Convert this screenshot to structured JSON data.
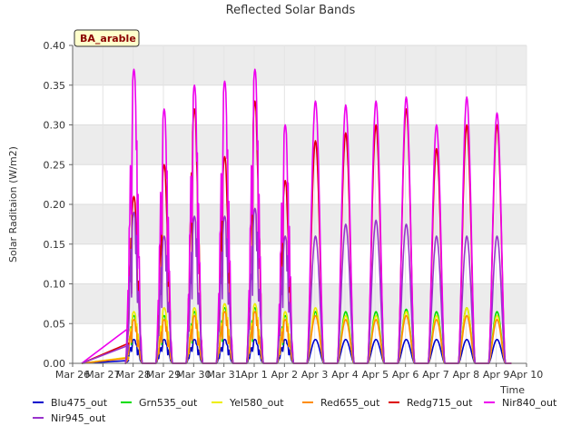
{
  "chart_data": {
    "type": "line",
    "title": "Reflected Solar Bands",
    "xlabel": "Time",
    "ylabel": "Solar Raditaion (W/m2)",
    "site_label": "BA_arable",
    "ylim": [
      0,
      0.4
    ],
    "yticks": [
      "0.00",
      "0.05",
      "0.10",
      "0.15",
      "0.20",
      "0.25",
      "0.30",
      "0.35",
      "0.40"
    ],
    "xlim": [
      0,
      15
    ],
    "xticks": [
      "Mar 26",
      "Mar 27",
      "Mar 28",
      "Mar 29",
      "Mar 30",
      "Mar 31",
      "Apr 1",
      "Apr 2",
      "Apr 3",
      "Apr 4",
      "Apr 5",
      "Apr 6",
      "Apr 7",
      "Apr 8",
      "Apr 9",
      "Apr 10"
    ],
    "days": [
      "Mar 28",
      "Mar 29",
      "Mar 30",
      "Mar 31",
      "Apr 1",
      "Apr 2",
      "Apr 3",
      "Apr 4",
      "Apr 5",
      "Apr 6",
      "Apr 7",
      "Apr 8",
      "Apr 9"
    ],
    "series": [
      {
        "name": "Blu475_out",
        "color": "#0000cc",
        "daily_peaks": [
          0.03,
          0.03,
          0.03,
          0.03,
          0.03,
          0.03,
          0.03,
          0.03,
          0.03,
          0.03,
          0.03,
          0.03,
          0.03
        ]
      },
      {
        "name": "Grn535_out",
        "color": "#00dd00",
        "daily_peaks": [
          0.06,
          0.06,
          0.065,
          0.07,
          0.07,
          0.06,
          0.065,
          0.065,
          0.065,
          0.068,
          0.065,
          0.07,
          0.065
        ]
      },
      {
        "name": "Yel580_out",
        "color": "#eeee00",
        "daily_peaks": [
          0.065,
          0.07,
          0.07,
          0.075,
          0.075,
          0.065,
          0.07,
          0.06,
          0.06,
          0.065,
          0.06,
          0.07,
          0.06
        ]
      },
      {
        "name": "Red655_out",
        "color": "#ff8c00",
        "daily_peaks": [
          0.055,
          0.055,
          0.06,
          0.065,
          0.065,
          0.055,
          0.06,
          0.055,
          0.055,
          0.06,
          0.055,
          0.06,
          0.055
        ]
      },
      {
        "name": "Redg715_out",
        "color": "#dd0000",
        "daily_peaks": [
          0.21,
          0.25,
          0.32,
          0.26,
          0.33,
          0.23,
          0.28,
          0.29,
          0.3,
          0.32,
          0.27,
          0.3,
          0.3
        ]
      },
      {
        "name": "Nir840_out",
        "color": "#ee00ee",
        "daily_peaks": [
          0.37,
          0.32,
          0.35,
          0.355,
          0.37,
          0.3,
          0.33,
          0.325,
          0.33,
          0.335,
          0.3,
          0.335,
          0.315
        ]
      },
      {
        "name": "Nir945_out",
        "color": "#9933cc",
        "daily_peaks": [
          0.19,
          0.16,
          0.185,
          0.185,
          0.195,
          0.16,
          0.16,
          0.175,
          0.18,
          0.175,
          0.16,
          0.16,
          0.16
        ]
      }
    ]
  }
}
